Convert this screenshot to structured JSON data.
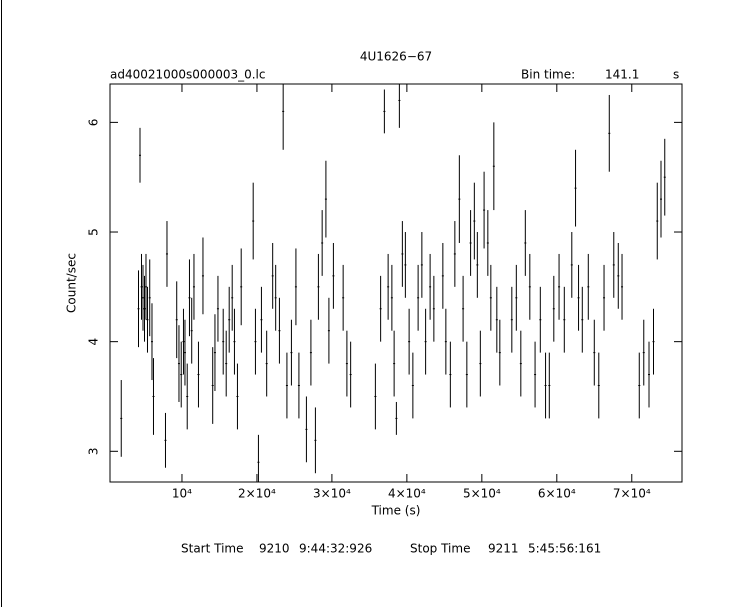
{
  "chart_data": {
    "type": "errorbar",
    "title": "4U1626−67",
    "file_label": "ad40021000s000003_0.lc",
    "bin_time_label": "Bin time:",
    "bin_time": "141.1",
    "bin_time_unit": "s",
    "xlabel": "Time (s)",
    "ylabel": "Count/sec",
    "footer": {
      "start_label": "Start Time",
      "start_day": "9210",
      "start_clock": "9:44:32:926",
      "stop_label": "Stop Time",
      "stop_day": "9211",
      "stop_clock": "5:45:56:161"
    },
    "color": "#000000",
    "xlim": [
      400,
      76700
    ],
    "ylim": [
      2.72,
      6.35
    ],
    "xticks": [
      {
        "value": 10000,
        "label": "10⁴"
      },
      {
        "value": 20000,
        "label": "2×10⁴"
      },
      {
        "value": 30000,
        "label": "3×10⁴"
      },
      {
        "value": 40000,
        "label": "4×10⁴"
      },
      {
        "value": 50000,
        "label": "5×10⁴"
      },
      {
        "value": 60000,
        "label": "6×10⁴"
      },
      {
        "value": 70000,
        "label": "7×10⁴"
      }
    ],
    "yticks": [
      3,
      4,
      5,
      6
    ],
    "x": [
      1900,
      4200,
      4400,
      4600,
      4800,
      5000,
      5200,
      5400,
      5700,
      6000,
      6200,
      7800,
      8000,
      9300,
      9600,
      9900,
      10200,
      10400,
      10700,
      11000,
      11300,
      11600,
      12200,
      12800,
      14100,
      14400,
      14800,
      15500,
      15900,
      16300,
      16700,
      17000,
      17400,
      17900,
      19500,
      19800,
      20200,
      20600,
      21300,
      22100,
      22500,
      23000,
      23500,
      24000,
      24600,
      25200,
      25600,
      26600,
      27200,
      27800,
      28200,
      28700,
      29200,
      29600,
      30200,
      31500,
      32000,
      32500,
      35800,
      36500,
      37000,
      37500,
      38000,
      38300,
      38600,
      39000,
      39400,
      39800,
      40300,
      40800,
      41500,
      42000,
      42500,
      43100,
      43600,
      44800,
      45200,
      45800,
      46400,
      47000,
      47500,
      48000,
      48500,
      49000,
      49400,
      49800,
      50300,
      50800,
      51200,
      51600,
      52000,
      52400,
      54000,
      54600,
      55200,
      55800,
      56400,
      57100,
      57800,
      58500,
      59000,
      59600,
      60300,
      61000,
      62000,
      62500,
      62900,
      63400,
      64200,
      65000,
      65600,
      66300,
      67000,
      67600,
      68200,
      68700,
      71000,
      71600,
      72300,
      72900,
      73400,
      73900,
      74400
    ],
    "values": [
      3.3,
      4.3,
      5.7,
      4.5,
      4.4,
      4.3,
      4.5,
      4.2,
      4.4,
      4.0,
      3.5,
      3.1,
      4.8,
      4.2,
      3.8,
      3.7,
      4.0,
      3.9,
      3.5,
      4.4,
      4.1,
      4.5,
      3.7,
      4.6,
      3.6,
      3.9,
      4.3,
      4.0,
      3.8,
      4.2,
      4.4,
      4.0,
      3.5,
      4.5,
      5.1,
      4.0,
      2.9,
      4.2,
      3.8,
      4.6,
      4.4,
      4.1,
      6.1,
      3.6,
      3.9,
      4.5,
      3.6,
      3.2,
      3.9,
      3.1,
      4.5,
      4.9,
      5.3,
      4.1,
      4.6,
      4.4,
      3.8,
      3.7,
      3.5,
      4.3,
      6.1,
      4.5,
      4.4,
      3.8,
      3.3,
      6.2,
      4.8,
      4.7,
      4.0,
      3.6,
      4.4,
      4.7,
      4.0,
      4.5,
      4.3,
      4.6,
      4.0,
      3.7,
      4.8,
      5.3,
      4.3,
      3.7,
      4.9,
      5.1,
      4.7,
      3.8,
      5.2,
      4.9,
      4.4,
      5.6,
      4.2,
      3.9,
      4.2,
      4.4,
      3.8,
      4.9,
      4.5,
      3.7,
      4.2,
      3.6,
      3.6,
      4.3,
      4.5,
      4.2,
      4.7,
      5.4,
      4.4,
      4.2,
      4.5,
      3.9,
      3.6,
      4.4,
      5.9,
      4.7,
      4.6,
      4.5,
      3.6,
      3.9,
      3.7,
      4.0,
      5.1,
      5.3,
      5.5
    ],
    "errors": [
      0.35,
      0.35,
      0.25,
      0.3,
      0.3,
      0.3,
      0.3,
      0.3,
      0.35,
      0.35,
      0.35,
      0.25,
      0.3,
      0.35,
      0.35,
      0.3,
      0.3,
      0.3,
      0.3,
      0.35,
      0.3,
      0.3,
      0.3,
      0.35,
      0.35,
      0.35,
      0.3,
      0.3,
      0.3,
      0.3,
      0.3,
      0.3,
      0.3,
      0.35,
      0.35,
      0.3,
      0.25,
      0.3,
      0.3,
      0.3,
      0.3,
      0.3,
      0.35,
      0.3,
      0.3,
      0.35,
      0.3,
      0.3,
      0.3,
      0.3,
      0.3,
      0.3,
      0.35,
      0.3,
      0.3,
      0.3,
      0.3,
      0.3,
      0.3,
      0.3,
      0.2,
      0.3,
      0.3,
      0.3,
      0.15,
      0.25,
      0.3,
      0.3,
      0.3,
      0.3,
      0.3,
      0.3,
      0.3,
      0.3,
      0.3,
      0.3,
      0.3,
      0.3,
      0.3,
      0.4,
      0.3,
      0.3,
      0.3,
      0.35,
      0.3,
      0.3,
      0.35,
      0.3,
      0.3,
      0.4,
      0.3,
      0.3,
      0.3,
      0.3,
      0.3,
      0.3,
      0.3,
      0.3,
      0.3,
      0.3,
      0.3,
      0.3,
      0.3,
      0.3,
      0.3,
      0.35,
      0.3,
      0.3,
      0.3,
      0.3,
      0.3,
      0.3,
      0.35,
      0.3,
      0.3,
      0.3,
      0.3,
      0.3,
      0.3,
      0.3,
      0.35,
      0.35,
      0.35
    ]
  }
}
